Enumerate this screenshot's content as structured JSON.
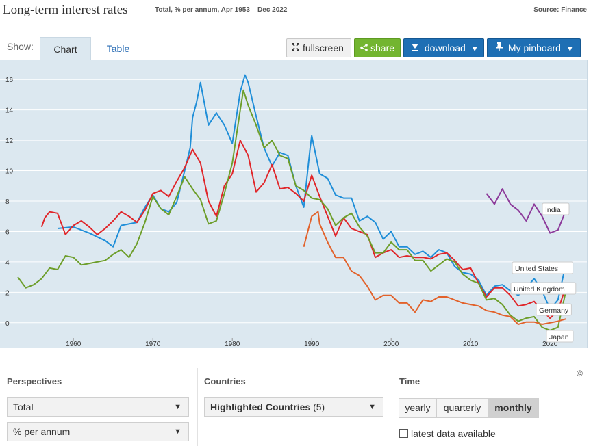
{
  "header": {
    "title": "Long-term interest rates",
    "subtitle": "Total, % per annum, Apr 1953 – Dec 2022",
    "source": "Source: Finance"
  },
  "toolbar": {
    "show_label": "Show:",
    "tabs": [
      {
        "label": "Chart",
        "active": true
      },
      {
        "label": "Table",
        "active": false
      }
    ],
    "fullscreen_label": "fullscreen",
    "share_label": "share",
    "download_label": "download",
    "pinboard_label": "My pinboard",
    "fullscreen_icon": "expand-icon",
    "share_icon": "share-icon",
    "download_icon": "download-icon",
    "pin_icon": "pin-icon",
    "dropdown_icon": "▼"
  },
  "colors": {
    "plot_bg": "#dce8f0",
    "united_states": "#1f8ed8",
    "united_kingdom": "#e0262a",
    "germany": "#6d9e2a",
    "japan": "#e2622b",
    "india": "#8c3a9a",
    "share_button": "#73b530",
    "primary_button": "#1e6fb4"
  },
  "chart_data": {
    "type": "line",
    "x_range": [
      1953,
      2023
    ],
    "y_range": [
      -1,
      17
    ],
    "x_ticks": [
      1960,
      1970,
      1980,
      1990,
      2000,
      2010,
      2020
    ],
    "y_ticks": [
      0,
      2,
      4,
      6,
      8,
      10,
      12,
      14,
      16
    ],
    "grid": true,
    "series": [
      {
        "name": "United States",
        "color": "#1f8ed8",
        "points": [
          [
            1958,
            6.2
          ],
          [
            1960,
            6.3
          ],
          [
            1962,
            5.9
          ],
          [
            1964,
            5.4
          ],
          [
            1965,
            5.0
          ],
          [
            1966,
            6.4
          ],
          [
            1968,
            6.6
          ],
          [
            1969,
            7.6
          ],
          [
            1970,
            8.4
          ],
          [
            1971,
            7.5
          ],
          [
            1972,
            7.3
          ],
          [
            1973,
            7.9
          ],
          [
            1974,
            10.0
          ],
          [
            1974.7,
            11.5
          ],
          [
            1975,
            13.5
          ],
          [
            1975.5,
            14.5
          ],
          [
            1976,
            15.8
          ],
          [
            1977,
            13.0
          ],
          [
            1978,
            13.8
          ],
          [
            1979,
            13.0
          ],
          [
            1980,
            11.8
          ],
          [
            1981,
            15.2
          ],
          [
            1981.6,
            16.3
          ],
          [
            1982,
            15.8
          ],
          [
            1983,
            13.6
          ],
          [
            1984,
            11.5
          ],
          [
            1985,
            10.3
          ],
          [
            1986,
            11.2
          ],
          [
            1987,
            11.0
          ],
          [
            1988,
            9.0
          ],
          [
            1989,
            7.6
          ],
          [
            1989.8,
            11.5
          ],
          [
            1990,
            12.3
          ],
          [
            1991,
            9.8
          ],
          [
            1992,
            9.5
          ],
          [
            1993,
            8.4
          ],
          [
            1994,
            8.2
          ],
          [
            1995,
            8.2
          ],
          [
            1996,
            6.7
          ],
          [
            1997,
            7.0
          ],
          [
            1998,
            6.6
          ],
          [
            1999,
            5.5
          ],
          [
            2000,
            6.0
          ],
          [
            2001,
            5.0
          ],
          [
            2002,
            5.0
          ],
          [
            2003,
            4.5
          ],
          [
            2004,
            4.7
          ],
          [
            2005,
            4.3
          ],
          [
            2006,
            4.8
          ],
          [
            2007,
            4.6
          ],
          [
            2008,
            3.7
          ],
          [
            2009,
            3.3
          ],
          [
            2010,
            3.2
          ],
          [
            2011,
            2.8
          ],
          [
            2012,
            1.8
          ],
          [
            2013,
            2.4
          ],
          [
            2014,
            2.5
          ],
          [
            2015,
            2.1
          ],
          [
            2016,
            1.8
          ],
          [
            2017,
            2.3
          ],
          [
            2018,
            2.9
          ],
          [
            2019,
            2.1
          ],
          [
            2020,
            0.9
          ],
          [
            2021,
            1.5
          ],
          [
            2022,
            3.9
          ]
        ]
      },
      {
        "name": "United Kingdom",
        "color": "#e0262a",
        "points": [
          [
            1956,
            6.3
          ],
          [
            1956.4,
            6.9
          ],
          [
            1957,
            7.3
          ],
          [
            1958,
            7.2
          ],
          [
            1959,
            5.8
          ],
          [
            1960,
            6.4
          ],
          [
            1961,
            6.7
          ],
          [
            1962,
            6.3
          ],
          [
            1963,
            5.8
          ],
          [
            1964,
            6.2
          ],
          [
            1965,
            6.7
          ],
          [
            1966,
            7.3
          ],
          [
            1967,
            7.0
          ],
          [
            1968,
            6.6
          ],
          [
            1969,
            7.4
          ],
          [
            1970,
            8.5
          ],
          [
            1971,
            8.7
          ],
          [
            1972,
            8.3
          ],
          [
            1973,
            9.3
          ],
          [
            1974,
            10.2
          ],
          [
            1975,
            11.4
          ],
          [
            1976,
            10.5
          ],
          [
            1977,
            8.0
          ],
          [
            1978,
            7.0
          ],
          [
            1979,
            9.0
          ],
          [
            1980,
            9.8
          ],
          [
            1981,
            12.0
          ],
          [
            1982,
            11.0
          ],
          [
            1983,
            8.6
          ],
          [
            1984,
            9.2
          ],
          [
            1985,
            10.4
          ],
          [
            1986,
            8.8
          ],
          [
            1987,
            8.9
          ],
          [
            1988,
            8.5
          ],
          [
            1989,
            8.0
          ],
          [
            1990,
            9.7
          ],
          [
            1991,
            8.3
          ],
          [
            1992,
            7.0
          ],
          [
            1993,
            5.7
          ],
          [
            1994,
            6.9
          ],
          [
            1995,
            6.2
          ],
          [
            1996,
            6.0
          ],
          [
            1997,
            5.8
          ],
          [
            1998,
            4.3
          ],
          [
            1999,
            4.6
          ],
          [
            2000,
            4.8
          ],
          [
            2001,
            4.3
          ],
          [
            2002,
            4.4
          ],
          [
            2003,
            4.3
          ],
          [
            2004,
            4.3
          ],
          [
            2005,
            4.2
          ],
          [
            2006,
            4.5
          ],
          [
            2007,
            4.6
          ],
          [
            2008,
            4.1
          ],
          [
            2009,
            3.5
          ],
          [
            2010,
            3.6
          ],
          [
            2011,
            2.6
          ],
          [
            2012,
            1.7
          ],
          [
            2013,
            2.3
          ],
          [
            2014,
            2.3
          ],
          [
            2015,
            1.8
          ],
          [
            2016,
            1.1
          ],
          [
            2017,
            1.2
          ],
          [
            2018,
            1.4
          ],
          [
            2019,
            0.8
          ],
          [
            2020,
            0.3
          ],
          [
            2021,
            0.8
          ],
          [
            2022,
            2.4
          ]
        ]
      },
      {
        "name": "Germany",
        "color": "#6d9e2a",
        "points": [
          [
            1953,
            3.0
          ],
          [
            1954,
            2.3
          ],
          [
            1955,
            2.5
          ],
          [
            1956,
            2.9
          ],
          [
            1957,
            3.6
          ],
          [
            1958,
            3.5
          ],
          [
            1959,
            4.4
          ],
          [
            1960,
            4.3
          ],
          [
            1961,
            3.8
          ],
          [
            1962,
            3.9
          ],
          [
            1963,
            4.0
          ],
          [
            1964,
            4.1
          ],
          [
            1965,
            4.5
          ],
          [
            1966,
            4.8
          ],
          [
            1967,
            4.3
          ],
          [
            1968,
            5.2
          ],
          [
            1969,
            6.6
          ],
          [
            1970,
            8.3
          ],
          [
            1971,
            7.5
          ],
          [
            1972,
            7.1
          ],
          [
            1973,
            8.3
          ],
          [
            1974,
            9.6
          ],
          [
            1975,
            8.8
          ],
          [
            1976,
            8.1
          ],
          [
            1977,
            6.5
          ],
          [
            1978,
            6.7
          ],
          [
            1979,
            8.5
          ],
          [
            1980,
            10.5
          ],
          [
            1981,
            14.0
          ],
          [
            1981.4,
            15.3
          ],
          [
            1982,
            14.3
          ],
          [
            1983,
            13.0
          ],
          [
            1984,
            11.5
          ],
          [
            1985,
            12.0
          ],
          [
            1986,
            11.0
          ],
          [
            1987,
            10.8
          ],
          [
            1988,
            9.0
          ],
          [
            1989,
            8.7
          ],
          [
            1990,
            8.2
          ],
          [
            1991,
            8.1
          ],
          [
            1992,
            7.5
          ],
          [
            1993,
            6.4
          ],
          [
            1994,
            6.9
          ],
          [
            1995,
            7.2
          ],
          [
            1996,
            6.3
          ],
          [
            1997,
            5.7
          ],
          [
            1998,
            4.6
          ],
          [
            1999,
            4.6
          ],
          [
            2000,
            5.3
          ],
          [
            2001,
            4.8
          ],
          [
            2002,
            4.8
          ],
          [
            2003,
            4.1
          ],
          [
            2004,
            4.1
          ],
          [
            2005,
            3.4
          ],
          [
            2006,
            3.8
          ],
          [
            2007,
            4.2
          ],
          [
            2008,
            4.0
          ],
          [
            2009,
            3.2
          ],
          [
            2010,
            2.8
          ],
          [
            2011,
            2.6
          ],
          [
            2012,
            1.5
          ],
          [
            2013,
            1.6
          ],
          [
            2014,
            1.2
          ],
          [
            2015,
            0.5
          ],
          [
            2016,
            0.1
          ],
          [
            2017,
            0.3
          ],
          [
            2018,
            0.4
          ],
          [
            2019,
            -0.3
          ],
          [
            2020,
            -0.5
          ],
          [
            2021,
            -0.3
          ],
          [
            2022,
            2.1
          ]
        ]
      },
      {
        "name": "Japan",
        "color": "#e2622b",
        "points": [
          [
            1989,
            5.0
          ],
          [
            1990,
            7.0
          ],
          [
            1990.8,
            7.3
          ],
          [
            1991,
            6.5
          ],
          [
            1992,
            5.3
          ],
          [
            1993,
            4.3
          ],
          [
            1994,
            4.3
          ],
          [
            1995,
            3.4
          ],
          [
            1996,
            3.1
          ],
          [
            1997,
            2.4
          ],
          [
            1998,
            1.5
          ],
          [
            1999,
            1.8
          ],
          [
            2000,
            1.8
          ],
          [
            2001,
            1.3
          ],
          [
            2002,
            1.3
          ],
          [
            2003,
            0.7
          ],
          [
            2004,
            1.5
          ],
          [
            2005,
            1.4
          ],
          [
            2006,
            1.7
          ],
          [
            2007,
            1.7
          ],
          [
            2008,
            1.5
          ],
          [
            2009,
            1.3
          ],
          [
            2010,
            1.2
          ],
          [
            2011,
            1.1
          ],
          [
            2012,
            0.8
          ],
          [
            2013,
            0.7
          ],
          [
            2014,
            0.5
          ],
          [
            2015,
            0.4
          ],
          [
            2016,
            -0.1
          ],
          [
            2017,
            0.05
          ],
          [
            2018,
            0.05
          ],
          [
            2019,
            -0.1
          ],
          [
            2020,
            0.0
          ],
          [
            2021,
            0.1
          ],
          [
            2022,
            0.25
          ]
        ]
      },
      {
        "name": "India",
        "color": "#8c3a9a",
        "points": [
          [
            2012,
            8.5
          ],
          [
            2013,
            7.8
          ],
          [
            2014,
            8.8
          ],
          [
            2015,
            7.8
          ],
          [
            2016,
            7.4
          ],
          [
            2017,
            6.7
          ],
          [
            2018,
            7.8
          ],
          [
            2019,
            7.0
          ],
          [
            2020,
            5.9
          ],
          [
            2021,
            6.1
          ],
          [
            2022,
            7.4
          ]
        ]
      }
    ]
  },
  "legend_labels": [
    "India",
    "United States",
    "United Kingdom",
    "Germany",
    "Japan"
  ],
  "copyright": "©",
  "perspectives": {
    "title": "Perspectives",
    "measure": "Total",
    "unit": "% per annum"
  },
  "countries": {
    "title": "Countries",
    "selected": "Highlighted Countries",
    "count": "(5)"
  },
  "time": {
    "title": "Time",
    "options": [
      "yearly",
      "quarterly",
      "monthly"
    ],
    "active": "monthly",
    "latest_label": "latest data available"
  }
}
